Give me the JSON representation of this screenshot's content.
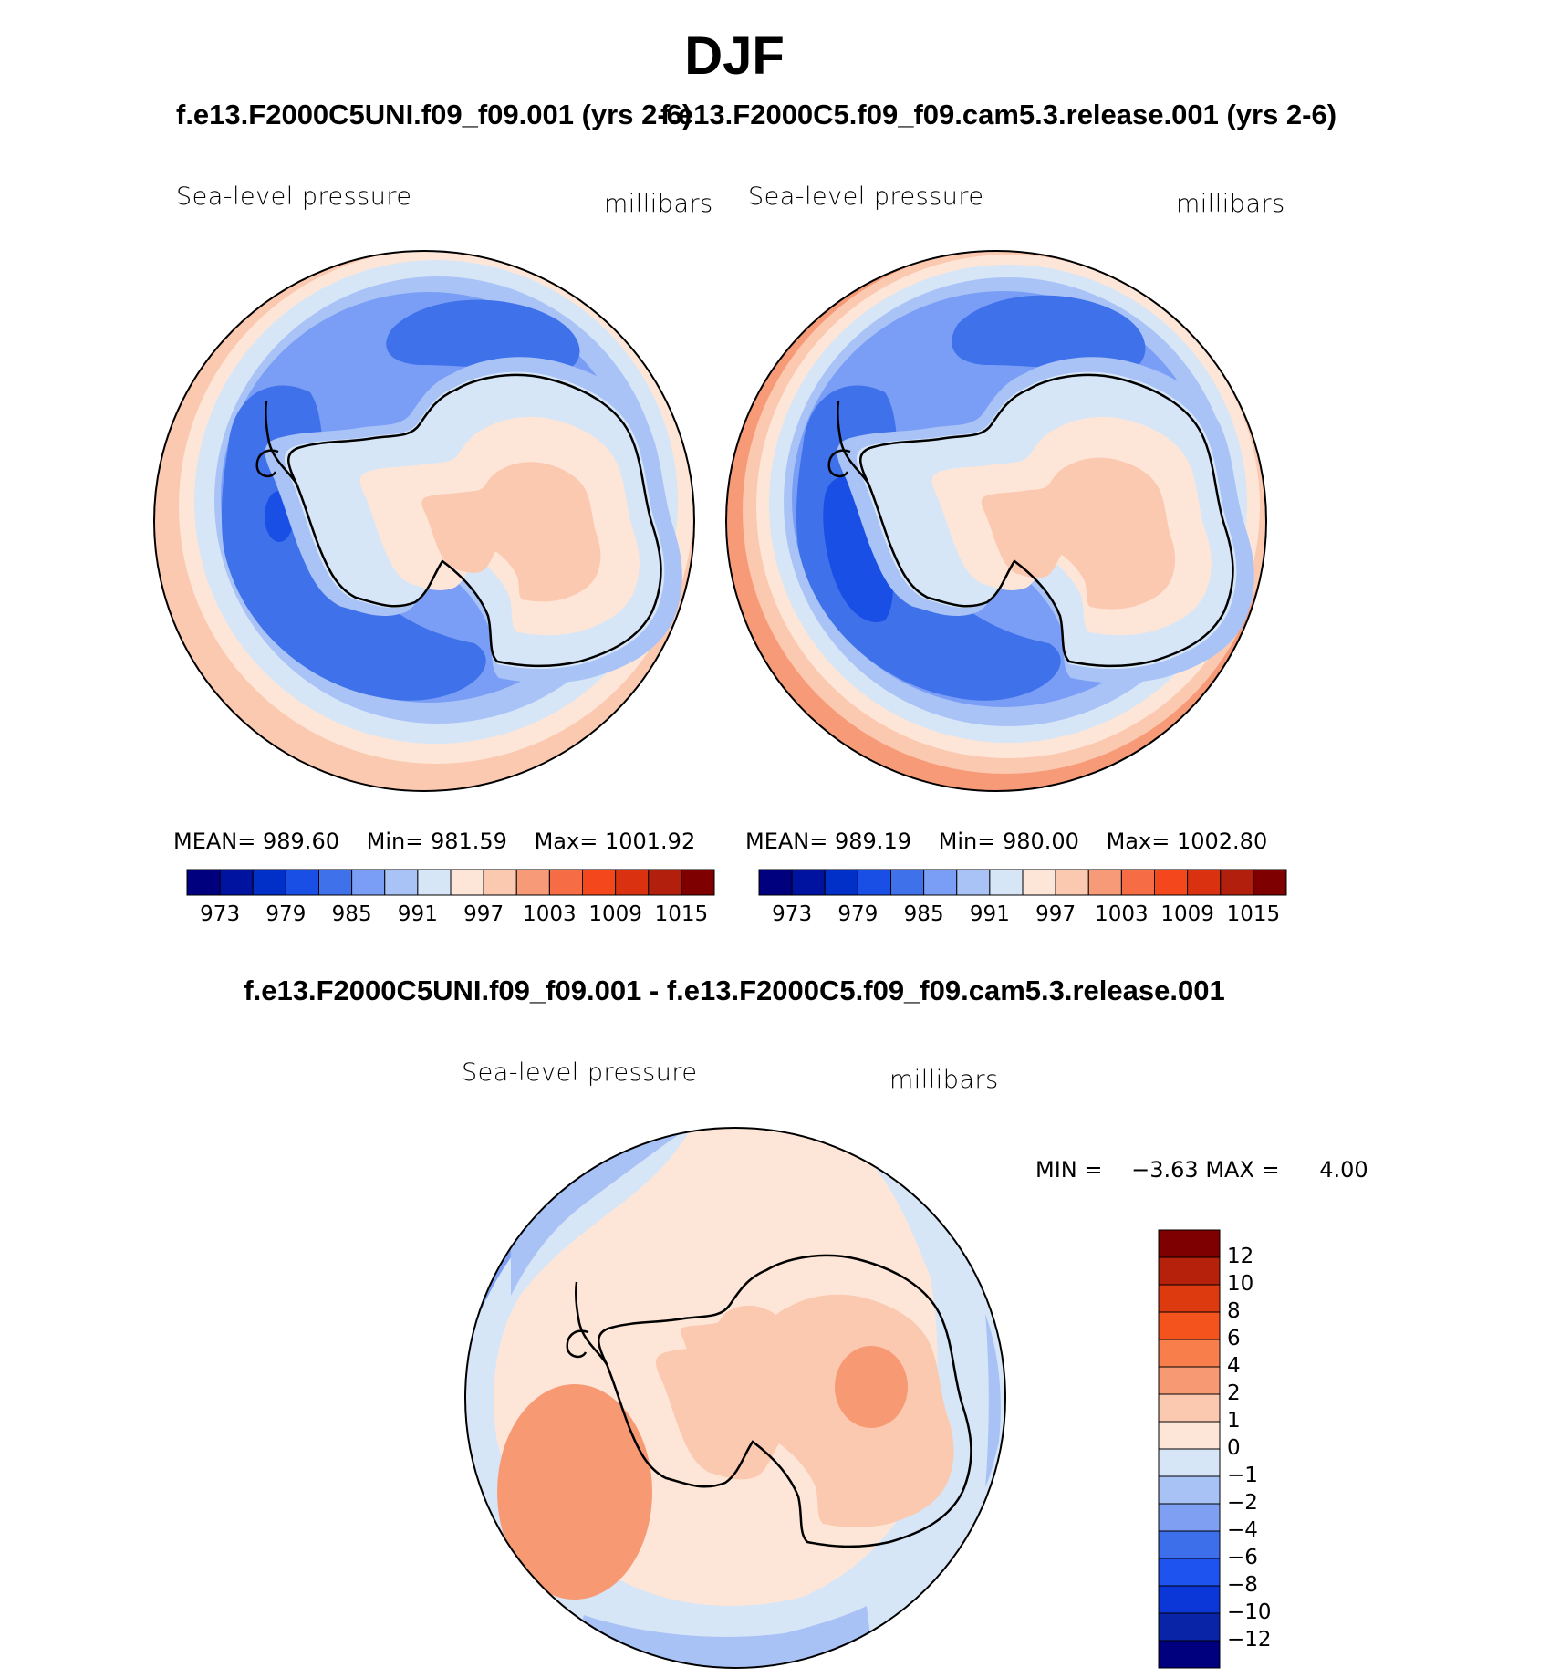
{
  "figure": {
    "season": "DJF",
    "case_title": "f.e13.F2000C5UNI.f09_f09.001 (yrs 2-6)",
    "control_title": "f.e13.F2000C5.f09_f09.cam5.3.release.001 (yrs 2-6)",
    "diff_title": "f.e13.F2000C5UNI.f09_f09.001 - f.e13.F2000C5.f09_f09.cam5.3.release.001"
  },
  "colors": {
    "abs_levels": [
      "#00007f",
      "#0013a0",
      "#0030c8",
      "#1a4fe6",
      "#3e71ea",
      "#7a9ef5",
      "#a9c3f7",
      "#d6e6f7",
      "#fde6d8",
      "#fbc8b0",
      "#f79a77",
      "#f66d45",
      "#f4471c",
      "#da3211",
      "#b21f0c",
      "#7f0000"
    ],
    "diff_levels": [
      "#00007f",
      "#0a24a8",
      "#0b36d8",
      "#1f53ef",
      "#3e6fea",
      "#7f9ff2",
      "#a9c2f6",
      "#d7e6f7",
      "#fde6d8",
      "#fbc8b0",
      "#f79a74",
      "#f87e4b",
      "#f5531e",
      "#dd3a0f",
      "#b5210b",
      "#7f0000"
    ],
    "coast": "#000000"
  },
  "chart_data": [
    {
      "type": "heatmap",
      "projection": "south polar stereographic",
      "title": "f.e13.F2000C5UNI.f09_f09.001 (yrs 2-6)",
      "variable": "Sea-level pressure",
      "units": "millibars",
      "mean": "989.60",
      "min": "981.59",
      "max": "1001.92",
      "levels": [
        973,
        976,
        979,
        982,
        985,
        988,
        991,
        994,
        997,
        1000,
        1003,
        1006,
        1009,
        1012,
        1015
      ],
      "colorbar_tick_labels": [
        "973",
        "979",
        "985",
        "991",
        "997",
        "1003",
        "1009",
        "1015"
      ],
      "field_description": "Circumpolar trough (~982-988 mb) around Antarctica, higher pressure (~994-1003 mb) over the continent and at lower latitudes"
    },
    {
      "type": "heatmap",
      "projection": "south polar stereographic",
      "title": "f.e13.F2000C5.f09_f09.cam5.3.release.001 (yrs 2-6)",
      "variable": "Sea-level pressure",
      "units": "millibars",
      "mean": "989.19",
      "min": "980.00",
      "max": "1002.80",
      "levels": [
        973,
        976,
        979,
        982,
        985,
        988,
        991,
        994,
        997,
        1000,
        1003,
        1006,
        1009,
        1012,
        1015
      ],
      "colorbar_tick_labels": [
        "973",
        "979",
        "985",
        "991",
        "997",
        "1003",
        "1009",
        "1015"
      ],
      "field_description": "Deeper trough (~980-985 mb) in Amundsen/Bellingshausen Seas, high pressure over continent interior"
    },
    {
      "type": "heatmap",
      "projection": "south polar stereographic",
      "title": "f.e13.F2000C5UNI.f09_f09.001 - f.e13.F2000C5.f09_f09.cam5.3.release.001",
      "variable": "Sea-level pressure",
      "units": "millibars",
      "min_label": "MIN =",
      "min": "−3.63",
      "max_label": "MAX =",
      "max": "4.00",
      "levels": [
        -12,
        -10,
        -8,
        -6,
        -4,
        -2,
        -1,
        0,
        1,
        2,
        4,
        6,
        8,
        10,
        12
      ],
      "colorbar_tick_labels": [
        "12",
        "10",
        "8",
        "6",
        "4",
        "2",
        "1",
        "0",
        "−1",
        "−2",
        "−4",
        "−6",
        "−8",
        "−10",
        "−12"
      ],
      "field_description": "Positive differences (0-4 mb) over Antarctica and Amundsen Sea, negative (-1 to -4 mb) in the far field"
    }
  ]
}
